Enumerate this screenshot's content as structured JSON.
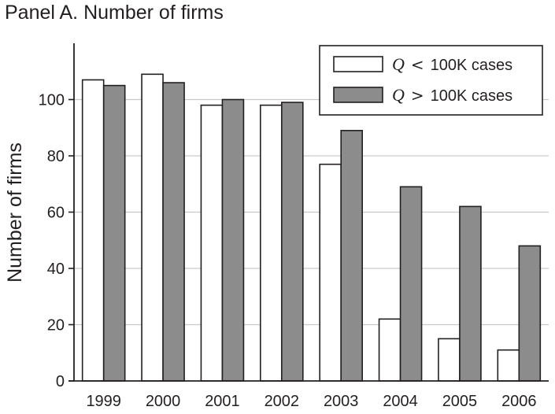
{
  "panel_title": "Panel A. Number of firms",
  "chart_data": {
    "type": "bar",
    "title": "Panel A. Number of firms",
    "xlabel": "",
    "ylabel": "Number of firms",
    "categories": [
      "1999",
      "2000",
      "2001",
      "2002",
      "2003",
      "2004",
      "2005",
      "2006"
    ],
    "ylim": [
      0,
      120
    ],
    "yticks": [
      0,
      20,
      40,
      60,
      80,
      100
    ],
    "grid": "horizontal",
    "legend_position": "top-right",
    "series": [
      {
        "name": "Q < 100K cases",
        "legend": {
          "var": "Q",
          "op": "<",
          "text": "100K cases"
        },
        "color": "#ffffff",
        "values": [
          107,
          109,
          98,
          98,
          77,
          22,
          15,
          11
        ]
      },
      {
        "name": "Q > 100K cases",
        "legend": {
          "var": "Q",
          "op": ">",
          "text": "100K cases"
        },
        "color": "#8c8c8c",
        "values": [
          105,
          106,
          100,
          99,
          89,
          69,
          62,
          48
        ]
      }
    ]
  }
}
